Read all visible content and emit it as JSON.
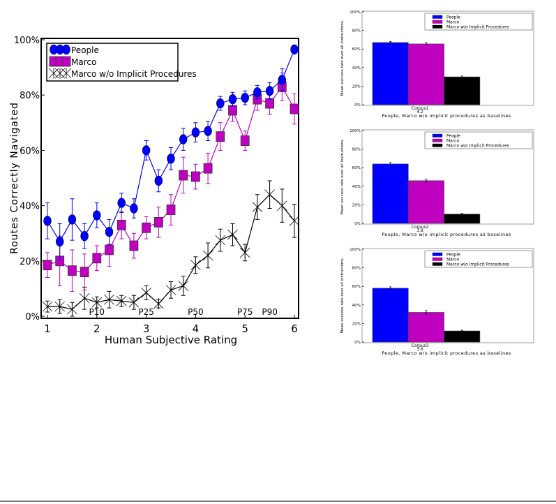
{
  "chart_data": [
    {
      "type": "line",
      "title": "",
      "xlabel": "Human Subjective Rating",
      "ylabel": "Routes Correctly Navigated",
      "xlim": [
        0.92,
        6.08
      ],
      "ylim": [
        0,
        100
      ],
      "xticks": [
        "1",
        "2",
        "3",
        "4",
        "5",
        "6"
      ],
      "yticks": [
        "0%",
        "20%",
        "40%",
        "60%",
        "80%",
        "100%"
      ],
      "legend_position": "top-left",
      "annotations": [
        {
          "text": "P10",
          "x": 2
        },
        {
          "text": "P25",
          "x": 3
        },
        {
          "text": "P50",
          "x": 4
        },
        {
          "text": "P75",
          "x": 5
        },
        {
          "text": "P90",
          "x": 5.5
        }
      ],
      "x": [
        1,
        1.25,
        1.5,
        1.75,
        2,
        2.25,
        2.5,
        2.75,
        3,
        3.25,
        3.5,
        3.75,
        4,
        4.25,
        4.5,
        4.75,
        5,
        5.25,
        5.5,
        5.75,
        6
      ],
      "series": [
        {
          "name": "People",
          "color": "#0000ff",
          "marker": "circle",
          "values": [
            34.5,
            27,
            35,
            29,
            36.5,
            30.5,
            41,
            39,
            60,
            49,
            57,
            64,
            66.5,
            67,
            77,
            78.5,
            79,
            81,
            81.5,
            85.5,
            96.5
          ],
          "err": [
            6.5,
            6.5,
            7.5,
            4.5,
            4.5,
            4.5,
            3.5,
            3.5,
            3.5,
            4,
            4,
            4,
            3.5,
            3.5,
            2.5,
            2.5,
            2.5,
            2.5,
            3,
            4,
            1.5
          ]
        },
        {
          "name": "Marco",
          "color": "#c000c0",
          "marker": "square",
          "values": [
            18.5,
            20,
            16.5,
            16,
            21,
            24,
            33,
            25.5,
            32,
            34,
            38.5,
            51,
            50.5,
            53.5,
            65,
            74.5,
            63.5,
            78.5,
            77,
            83,
            75
          ],
          "err": [
            4.5,
            9,
            7.5,
            6.5,
            4.5,
            6,
            5,
            4.5,
            4,
            5.5,
            5.5,
            6.5,
            4.5,
            5.5,
            5,
            4,
            3.5,
            4,
            4,
            5,
            5.5
          ]
        },
        {
          "name": "Marco w/o Implicit Procedures",
          "color": "#000000",
          "marker": "x",
          "values": [
            3.5,
            3.5,
            2.5,
            6.5,
            5,
            6,
            5.5,
            5,
            8.5,
            4.5,
            9.5,
            11,
            18.5,
            22,
            27.5,
            29.5,
            23,
            39.5,
            44,
            40,
            34.5
          ],
          "err": [
            2,
            2.5,
            2.5,
            4,
            2,
            3,
            2,
            2.5,
            2.5,
            1.5,
            3,
            3.5,
            3,
            4.5,
            4,
            4,
            3,
            4.5,
            5,
            6,
            6
          ]
        }
      ]
    },
    {
      "type": "bar",
      "category": "Corpus1",
      "sublabel": "4.2",
      "xlabel": "People, Marco w/o implicit procedures as baselines",
      "ylabel": "Mean success rate over all instructions.",
      "ylim": [
        0,
        100
      ],
      "yticks": [
        "0%",
        "20%",
        "40%",
        "60%",
        "80%",
        "100%"
      ],
      "legend_position": "top-right",
      "series": [
        {
          "name": "People",
          "color": "#0000ff",
          "value": 67,
          "err": 1
        },
        {
          "name": "Marco",
          "color": "#c000c0",
          "value": 65.5,
          "err": 1.5
        },
        {
          "name": "Marco w/o Implicit Procedures",
          "color": "#000000",
          "value": 30,
          "err": 1
        }
      ]
    },
    {
      "type": "bar",
      "category": "Corpus2",
      "sublabel": "3.8",
      "xlabel": "People, Marco w/o implicit procedures as baselines",
      "ylabel": "Mean success rate over all instructions.",
      "ylim": [
        0,
        100
      ],
      "yticks": [
        "0%",
        "20%",
        "40%",
        "60%",
        "80%",
        "100%"
      ],
      "legend_position": "top-right",
      "series": [
        {
          "name": "People",
          "color": "#0000ff",
          "value": 64,
          "err": 1.5
        },
        {
          "name": "Marco",
          "color": "#c000c0",
          "value": 46,
          "err": 1.5
        },
        {
          "name": "Marco w/o Implicit Procedures",
          "color": "#000000",
          "value": 10,
          "err": 0.8
        }
      ]
    },
    {
      "type": "bar",
      "category": "Corpus3",
      "sublabel": "3.6",
      "xlabel": "People, Marco w/o implicit procedures as baselines",
      "ylabel": "Mean success rate over all instructions.",
      "ylim": [
        0,
        100
      ],
      "yticks": [
        "0%",
        "20%",
        "40%",
        "60%",
        "80%",
        "100%"
      ],
      "legend_position": "top-right",
      "series": [
        {
          "name": "People",
          "color": "#0000ff",
          "value": 58,
          "err": 1.5
        },
        {
          "name": "Marco",
          "color": "#c000c0",
          "value": 32,
          "err": 2
        },
        {
          "name": "Marco w/o Implicit Procedures",
          "color": "#000000",
          "value": 12,
          "err": 0.8
        }
      ]
    }
  ]
}
